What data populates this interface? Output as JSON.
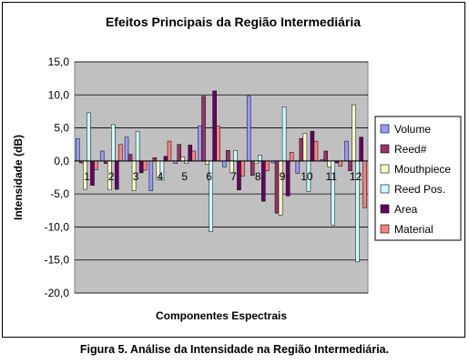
{
  "caption": "Figura 5. Análise da Intensidade na Região Intermediária.",
  "chart_data": {
    "type": "bar",
    "title": "Efeitos Principais da Região Intermediária",
    "xlabel": "Componentes Espectrais",
    "ylabel": "Intensidade (dB)",
    "ylim": [
      -20,
      15
    ],
    "yticks": [
      "15,0",
      "10,0",
      "5,0",
      "0,0",
      "-5,0",
      "-10,0",
      "-15,0",
      "-20,0"
    ],
    "categories": [
      "1",
      "2",
      "3",
      "4",
      "5",
      "6",
      "7",
      "8",
      "9",
      "10",
      "11",
      "12"
    ],
    "plot_background": "#c0c0c0",
    "grid": "horizontal",
    "legend_position": "right",
    "series": [
      {
        "name": "Volume",
        "color": "#9999ff",
        "values": [
          3.4,
          1.5,
          3.6,
          -4.5,
          -0.4,
          5.3,
          -0.9,
          9.8,
          -0.3,
          -1.9,
          0.2,
          3.0
        ]
      },
      {
        "name": "Reed#",
        "color": "#993366",
        "values": [
          -0.3,
          -0.4,
          1.0,
          0.5,
          2.5,
          9.8,
          1.6,
          -2.2,
          -7.9,
          3.4,
          1.5,
          -1.5
        ]
      },
      {
        "name": "Mouthpiece",
        "color": "#ffffcc",
        "values": [
          -4.3,
          -4.4,
          -4.5,
          -2.8,
          0.6,
          -0.5,
          -1.8,
          -0.4,
          -8.2,
          4.2,
          -0.9,
          8.5
        ]
      },
      {
        "name": "Reed Pos.",
        "color": "#ccffff",
        "values": [
          7.3,
          5.5,
          4.5,
          -2.9,
          -0.4,
          -10.7,
          1.6,
          0.9,
          8.2,
          -4.6,
          -9.7,
          -15.3
        ]
      },
      {
        "name": "Area",
        "color": "#660066",
        "values": [
          -3.7,
          -4.3,
          -1.8,
          0.7,
          2.4,
          10.6,
          -4.4,
          -6.1,
          -5.3,
          4.5,
          -0.3,
          3.6
        ]
      },
      {
        "name": "Material",
        "color": "#ff8080",
        "values": [
          -1.3,
          2.5,
          -1.4,
          3.0,
          1.5,
          5.3,
          -2.3,
          -1.5,
          1.3,
          3.0,
          -0.8,
          -7.1
        ]
      }
    ]
  }
}
